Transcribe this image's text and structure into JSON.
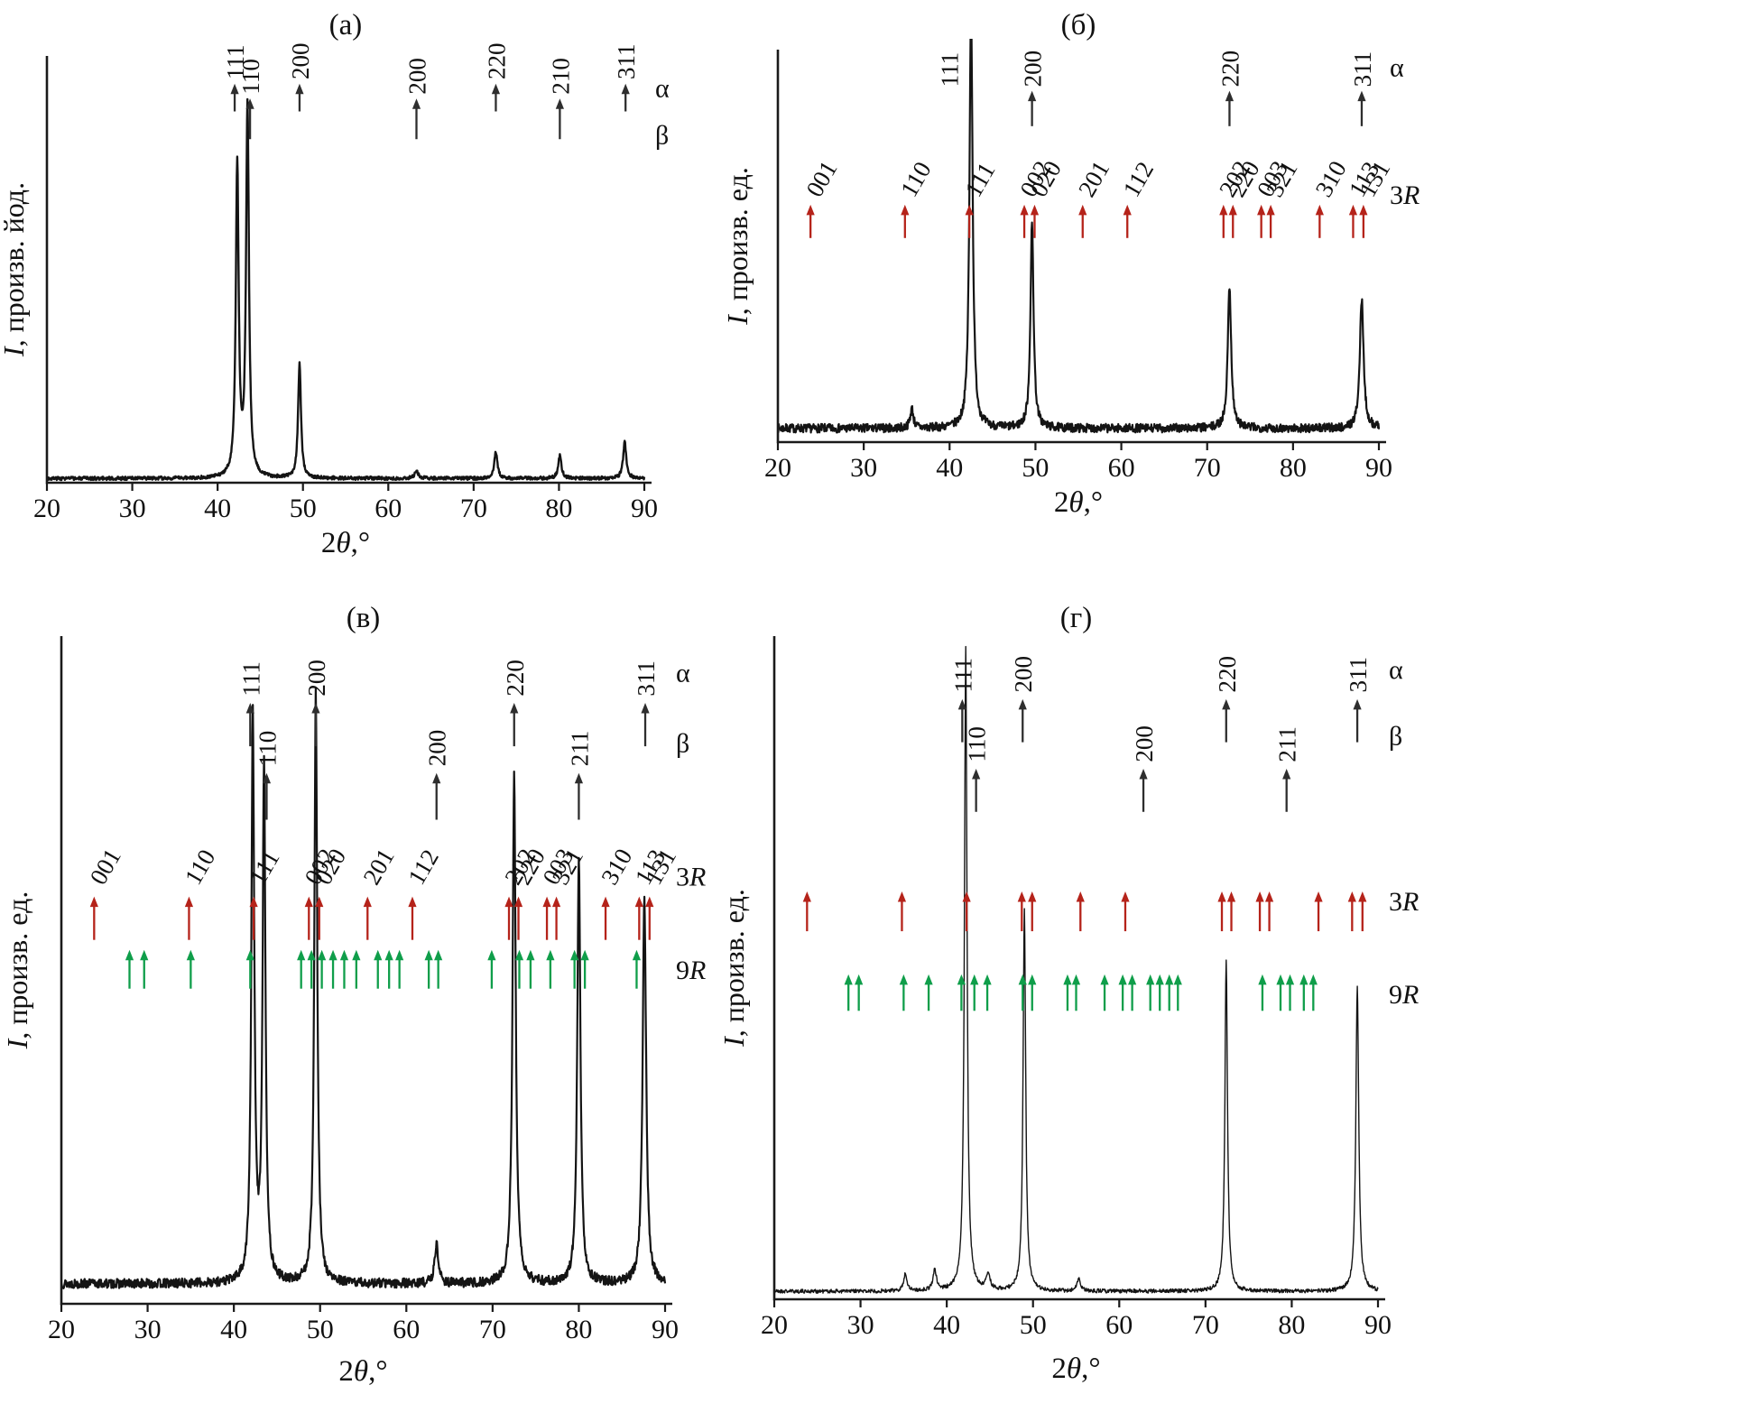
{
  "colors": {
    "curve": "#141414",
    "axis": "#1a1a1a",
    "alpha_beta_arrows": "#2e2e2e",
    "r3_arrows": "#b5231a",
    "r9_arrows": "#0f9e4a",
    "label_text": "#111111"
  },
  "chart_data": [
    {
      "id": "a",
      "type": "line",
      "title": "(а)",
      "xlabel": "2θ,°",
      "ylabel": "I, произв. йод.",
      "xlim": [
        20,
        90
      ],
      "x_ticks": [
        20,
        30,
        40,
        50,
        60,
        70,
        80,
        90
      ],
      "grid": false,
      "legend": "none",
      "curve": {
        "stroke_width": 2.4,
        "noise": 0.004,
        "baseline": 0.01,
        "seed": 3
      },
      "peaks": [
        {
          "x": 42.3,
          "h": 0.73,
          "w": 0.2
        },
        {
          "x": 43.5,
          "h": 0.87,
          "w": 0.2
        },
        {
          "x": 49.6,
          "h": 0.27,
          "w": 0.2
        },
        {
          "x": 63.3,
          "h": 0.018,
          "w": 0.25
        },
        {
          "x": 72.6,
          "h": 0.062,
          "w": 0.22
        },
        {
          "x": 80.1,
          "h": 0.053,
          "w": 0.22
        },
        {
          "x": 87.7,
          "h": 0.085,
          "w": 0.22
        }
      ],
      "marker_rows": [
        {
          "phase": "α",
          "color_key": "alpha_beta_arrows",
          "label_rotation": -90,
          "tip": 0.935,
          "tail": 0.87,
          "label_bottom": 0.945,
          "row_label_y": 0.925,
          "entries": [
            {
              "label": "111",
              "x": 42.0
            },
            {
              "label": "200",
              "x": 49.6
            },
            {
              "label": "220",
              "x": 72.6
            },
            {
              "label": "311",
              "x": 87.8
            }
          ]
        },
        {
          "phase": "β",
          "color_key": "alpha_beta_arrows",
          "label_rotation": -90,
          "tip": 0.9,
          "tail": 0.805,
          "label_bottom": 0.91,
          "row_label_y": 0.815,
          "entries": [
            {
              "label": "110",
              "x": 43.8
            },
            {
              "label": "200",
              "x": 63.3
            },
            {
              "label": "210",
              "x": 80.1
            }
          ]
        }
      ]
    },
    {
      "id": "b",
      "type": "line",
      "title": "(б)",
      "xlabel": "2θ,°",
      "ylabel": "I, произв. ед.",
      "xlim": [
        20,
        90
      ],
      "x_ticks": [
        20,
        30,
        40,
        50,
        60,
        70,
        80,
        90
      ],
      "grid": false,
      "legend": "none",
      "curve": {
        "stroke_width": 2.2,
        "noise": 0.011,
        "baseline": 0.035,
        "seed": 7
      },
      "peaks": [
        {
          "x": 35.6,
          "h": 0.05,
          "w": 0.22
        },
        {
          "x": 42.5,
          "h": 1.08,
          "w": 0.22
        },
        {
          "x": 49.6,
          "h": 0.52,
          "w": 0.22
        },
        {
          "x": 72.6,
          "h": 0.36,
          "w": 0.24
        },
        {
          "x": 88.0,
          "h": 0.33,
          "w": 0.26
        }
      ],
      "marker_rows": [
        {
          "phase": "α",
          "color_key": "alpha_beta_arrows",
          "label_rotation": -90,
          "tip": 0.895,
          "tail": 0.805,
          "label_bottom": 0.905,
          "row_label_y": 0.955,
          "entries": [
            {
              "label": "111",
              "x": 39.9,
              "arrow": false
            },
            {
              "label": "200",
              "x": 49.6
            },
            {
              "label": "220",
              "x": 72.6
            },
            {
              "label": "311",
              "x": 88.0
            }
          ]
        },
        {
          "phase": "3R",
          "color_key": "r3_arrows",
          "label_rotation": -60,
          "tip": 0.605,
          "tail": 0.52,
          "label_bottom": 0.62,
          "row_label_y": 0.63,
          "entries": [
            {
              "label": "001",
              "x": 23.8
            },
            {
              "label": "110",
              "x": 34.8
            },
            {
              "label": "111",
              "x": 42.3
            },
            {
              "label": "002",
              "x": 48.7
            },
            {
              "label": "020",
              "x": 49.9
            },
            {
              "label": "201",
              "x": 55.5
            },
            {
              "label": "112",
              "x": 60.7
            },
            {
              "label": "202",
              "x": 71.9
            },
            {
              "label": "220",
              "x": 73.0
            },
            {
              "label": "003",
              "x": 76.3
            },
            {
              "label": "321",
              "x": 77.4
            },
            {
              "label": "310",
              "x": 83.1
            },
            {
              "label": "113",
              "x": 87.0
            },
            {
              "label": "131",
              "x": 88.2
            }
          ]
        }
      ]
    },
    {
      "id": "v",
      "type": "line",
      "title": "(в)",
      "xlabel": "2θ,°",
      "ylabel": "I, произв. ед.",
      "xlim": [
        20,
        90
      ],
      "x_ticks": [
        20,
        30,
        40,
        50,
        60,
        70,
        80,
        90
      ],
      "grid": false,
      "legend": "none",
      "curve": {
        "stroke_width": 2.2,
        "noise": 0.007,
        "baseline": 0.03,
        "seed": 13
      },
      "peaks": [
        {
          "x": 42.2,
          "h": 0.85,
          "w": 0.2
        },
        {
          "x": 43.5,
          "h": 0.77,
          "w": 0.2
        },
        {
          "x": 49.5,
          "h": 0.89,
          "w": 0.2
        },
        {
          "x": 63.5,
          "h": 0.06,
          "w": 0.25
        },
        {
          "x": 72.5,
          "h": 0.76,
          "w": 0.22
        },
        {
          "x": 80.0,
          "h": 0.635,
          "w": 0.22
        },
        {
          "x": 87.6,
          "h": 0.58,
          "w": 0.24
        }
      ],
      "marker_rows": [
        {
          "phase": "α",
          "color_key": "alpha_beta_arrows",
          "label_rotation": -90,
          "tip": 0.9,
          "tail": 0.835,
          "label_bottom": 0.91,
          "row_label_y": 0.945,
          "entries": [
            {
              "label": "111",
              "x": 41.9
            },
            {
              "label": "200",
              "x": 49.5
            },
            {
              "label": "220",
              "x": 72.5
            },
            {
              "label": "311",
              "x": 87.7
            }
          ]
        },
        {
          "phase": "β",
          "color_key": "alpha_beta_arrows",
          "label_rotation": -90,
          "tip": 0.795,
          "tail": 0.725,
          "label_bottom": 0.805,
          "row_label_y": 0.84,
          "entries": [
            {
              "label": "110",
              "x": 43.8
            },
            {
              "label": "200",
              "x": 63.5
            },
            {
              "label": "211",
              "x": 80.0
            }
          ]
        },
        {
          "phase": "3R",
          "color_key": "r3_arrows",
          "label_rotation": -60,
          "tip": 0.61,
          "tail": 0.545,
          "label_bottom": 0.625,
          "row_label_y": 0.64,
          "entries": [
            {
              "label": "001",
              "x": 23.8
            },
            {
              "label": "110",
              "x": 34.8
            },
            {
              "label": "111",
              "x": 42.3
            },
            {
              "label": "002",
              "x": 48.7
            },
            {
              "label": "020",
              "x": 49.9
            },
            {
              "label": "201",
              "x": 55.5
            },
            {
              "label": "112",
              "x": 60.7
            },
            {
              "label": "202",
              "x": 71.9
            },
            {
              "label": "220",
              "x": 73.0
            },
            {
              "label": "003",
              "x": 76.3
            },
            {
              "label": "321",
              "x": 77.4
            },
            {
              "label": "310",
              "x": 83.1
            },
            {
              "label": "113",
              "x": 87.0
            },
            {
              "label": "131",
              "x": 88.2
            }
          ]
        },
        {
          "phase": "9R",
          "color_key": "r9_arrows",
          "label_rotation": -60,
          "tip": 0.53,
          "tail": 0.472,
          "label_bottom": 0.55,
          "row_label_y": 0.5,
          "entries": [
            {
              "x": 27.9
            },
            {
              "x": 29.6
            },
            {
              "x": 35.0
            },
            {
              "x": 41.9
            },
            {
              "x": 47.8
            },
            {
              "x": 49.0
            },
            {
              "x": 50.2
            },
            {
              "x": 51.5
            },
            {
              "x": 52.8
            },
            {
              "x": 54.2
            },
            {
              "x": 56.7
            },
            {
              "x": 58.0
            },
            {
              "x": 59.2
            },
            {
              "x": 62.6
            },
            {
              "x": 63.7
            },
            {
              "x": 69.9
            },
            {
              "x": 73.1
            },
            {
              "x": 74.4
            },
            {
              "x": 76.7
            },
            {
              "x": 79.5
            },
            {
              "x": 80.7
            },
            {
              "x": 86.7
            }
          ]
        }
      ]
    },
    {
      "id": "g",
      "type": "line",
      "title": "(г)",
      "xlabel": "2θ,°",
      "ylabel": "I, произв. ед.",
      "xlim": [
        20,
        90
      ],
      "x_ticks": [
        20,
        30,
        40,
        50,
        60,
        70,
        80,
        90
      ],
      "grid": false,
      "legend": "none",
      "curve": {
        "stroke_width": 1.4,
        "noise": 0.003,
        "baseline": 0.012,
        "seed": 21
      },
      "peaks": [
        {
          "x": 35.2,
          "h": 0.025,
          "w": 0.25
        },
        {
          "x": 38.6,
          "h": 0.03,
          "w": 0.25
        },
        {
          "x": 42.2,
          "h": 0.97,
          "w": 0.18
        },
        {
          "x": 44.8,
          "h": 0.025,
          "w": 0.25
        },
        {
          "x": 49.0,
          "h": 0.575,
          "w": 0.18
        },
        {
          "x": 55.3,
          "h": 0.018,
          "w": 0.25
        },
        {
          "x": 72.4,
          "h": 0.5,
          "w": 0.18
        },
        {
          "x": 87.6,
          "h": 0.46,
          "w": 0.2
        }
      ],
      "marker_rows": [
        {
          "phase": "α",
          "color_key": "alpha_beta_arrows",
          "label_rotation": -90,
          "tip": 0.905,
          "tail": 0.84,
          "label_bottom": 0.915,
          "row_label_y": 0.95,
          "entries": [
            {
              "label": "111",
              "x": 41.8
            },
            {
              "label": "200",
              "x": 48.8
            },
            {
              "label": "220",
              "x": 72.4
            },
            {
              "label": "311",
              "x": 87.6
            }
          ]
        },
        {
          "phase": "β",
          "color_key": "alpha_beta_arrows",
          "label_rotation": -90,
          "tip": 0.8,
          "tail": 0.735,
          "label_bottom": 0.81,
          "row_label_y": 0.85,
          "entries": [
            {
              "label": "110",
              "x": 43.4
            },
            {
              "label": "200",
              "x": 62.8
            },
            {
              "label": "211",
              "x": 79.4
            }
          ]
        },
        {
          "phase": "3R",
          "color_key": "r3_arrows",
          "label_rotation": -60,
          "tip": 0.615,
          "tail": 0.555,
          "label_bottom": 0.63,
          "row_label_y": 0.6,
          "entries": [
            {
              "x": 23.8
            },
            {
              "x": 34.8
            },
            {
              "x": 42.3
            },
            {
              "x": 48.7
            },
            {
              "x": 49.9
            },
            {
              "x": 55.5
            },
            {
              "x": 60.7
            },
            {
              "x": 71.9
            },
            {
              "x": 73.0
            },
            {
              "x": 76.3
            },
            {
              "x": 77.4
            },
            {
              "x": 83.1
            },
            {
              "x": 87.0
            },
            {
              "x": 88.2
            }
          ]
        },
        {
          "phase": "9R",
          "color_key": "r9_arrows",
          "label_rotation": -60,
          "tip": 0.49,
          "tail": 0.435,
          "label_bottom": 0.51,
          "row_label_y": 0.46,
          "entries": [
            {
              "x": 28.6
            },
            {
              "x": 29.8
            },
            {
              "x": 35.0
            },
            {
              "x": 37.9
            },
            {
              "x": 41.7
            },
            {
              "x": 43.2
            },
            {
              "x": 44.7
            },
            {
              "x": 48.8
            },
            {
              "x": 49.9
            },
            {
              "x": 54.0
            },
            {
              "x": 55.0
            },
            {
              "x": 58.3
            },
            {
              "x": 60.4
            },
            {
              "x": 61.5
            },
            {
              "x": 63.6
            },
            {
              "x": 64.7
            },
            {
              "x": 65.8
            },
            {
              "x": 66.8
            },
            {
              "x": 76.6
            },
            {
              "x": 78.7
            },
            {
              "x": 79.8
            },
            {
              "x": 81.4
            },
            {
              "x": 82.5
            }
          ]
        }
      ]
    }
  ]
}
